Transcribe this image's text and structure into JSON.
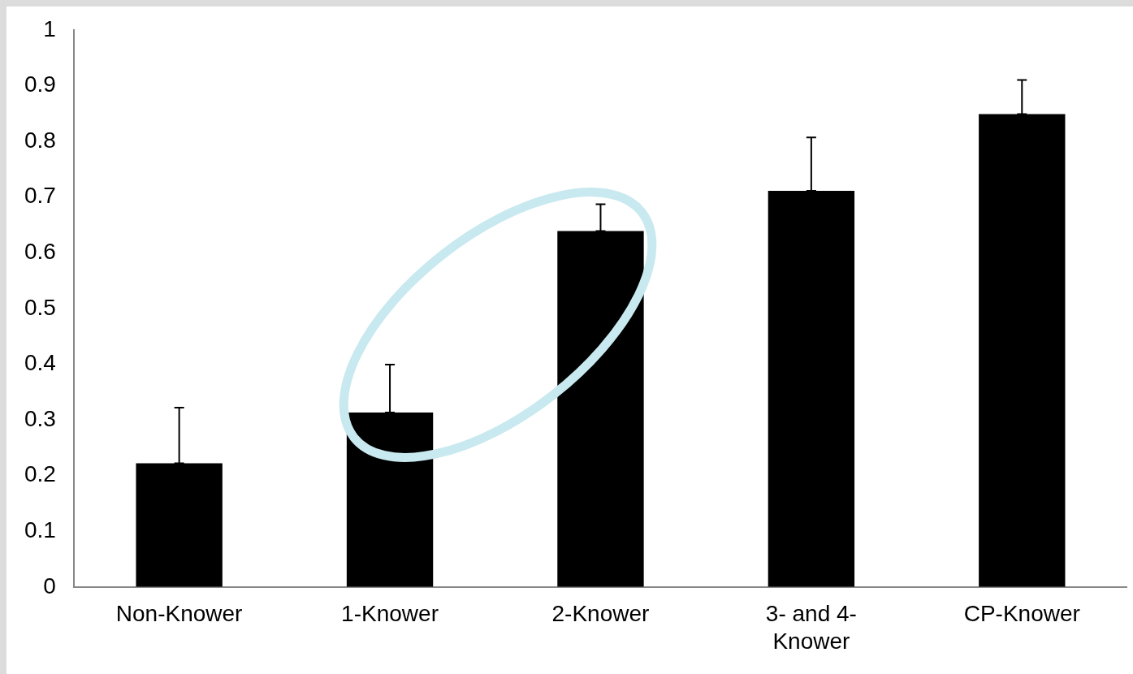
{
  "chart_data": {
    "type": "bar",
    "categories": [
      "Non-Knower",
      "1-Knower",
      "2-Knower",
      "3- and 4- Knower",
      "CP-Knower"
    ],
    "values": [
      0.222,
      0.313,
      0.639,
      0.711,
      0.849
    ],
    "color": "#000000",
    "errors": [
      [
        0.222,
        0.322
      ],
      [
        0.313,
        0.399
      ],
      [
        0.639,
        0.687
      ],
      [
        0.711,
        0.807
      ],
      [
        0.849,
        0.91
      ]
    ],
    "ylim": [
      0,
      1
    ],
    "yticks": [
      0,
      0.1,
      0.2,
      0.3,
      0.4,
      0.5,
      0.6,
      0.7,
      0.8,
      0.9,
      1
    ],
    "grid": false,
    "legend": false
  }
}
